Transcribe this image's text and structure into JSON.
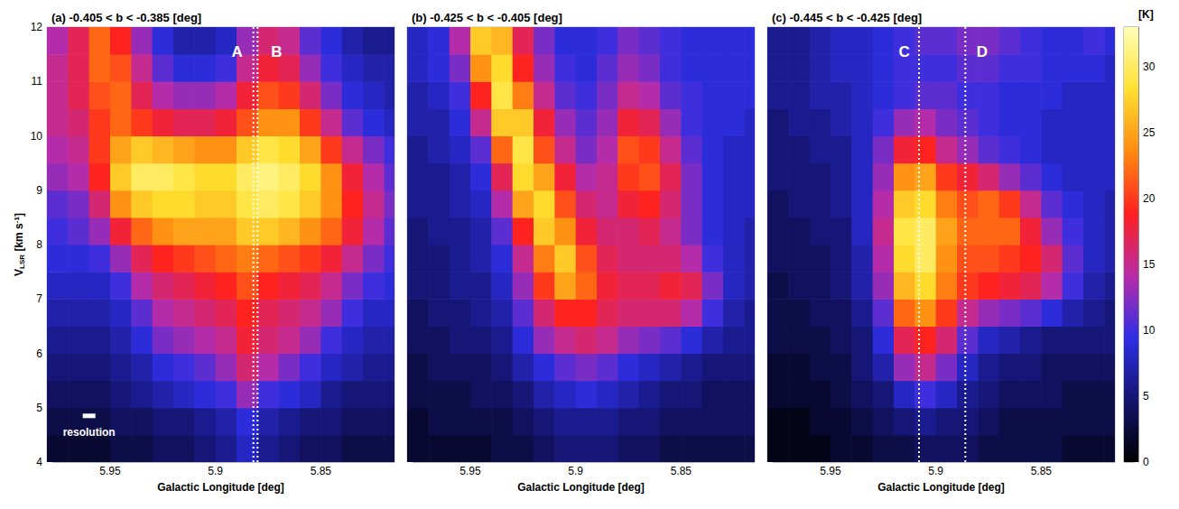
{
  "chart_data": {
    "type": "heatmap",
    "x_label": "Galactic Longitude [deg]",
    "y_label": {
      "main": "V",
      "sub": "LSR",
      "unit": " [km s",
      "sup": "-1",
      "end": "]"
    },
    "xlim": [
      5.98,
      5.815
    ],
    "xticks": [
      5.95,
      5.9,
      5.85
    ],
    "ylim": [
      4,
      12
    ],
    "yticks": [
      4,
      5,
      6,
      7,
      8,
      9,
      10,
      11,
      12
    ],
    "colorbar": {
      "label": "[K]",
      "range": [
        0,
        33
      ],
      "ticks": [
        0,
        5,
        10,
        15,
        20,
        25,
        30
      ],
      "colors": [
        "#000000",
        "#141470",
        "#2e2ee6",
        "#b82ca8",
        "#ff2020",
        "#ff8a10",
        "#ffe030",
        "#ffffb8"
      ]
    },
    "cell_size": {
      "l": 0.01,
      "v": 0.5
    },
    "l": [
      5.975,
      5.965,
      5.955,
      5.945,
      5.935,
      5.925,
      5.915,
      5.905,
      5.895,
      5.885,
      5.875,
      5.865,
      5.855,
      5.845,
      5.835,
      5.825,
      5.815
    ],
    "v": [
      4.25,
      4.75,
      5.25,
      5.75,
      6.25,
      6.75,
      7.25,
      7.75,
      8.25,
      8.75,
      9.25,
      9.75,
      10.25,
      10.75,
      11.25,
      11.75
    ],
    "panels": [
      {
        "title": "(a) -0.405 < b < -0.385 [deg]",
        "lines": [
          5.882,
          5.88
        ],
        "labels": [
          {
            "text": "A",
            "l": 5.8897,
            "v": 11.55
          },
          {
            "text": "B",
            "l": 5.871,
            "v": 11.55
          }
        ],
        "resolution": {
          "label": "resolution",
          "l": 5.96,
          "v": 4.85,
          "width": 0.006
        },
        "intensity": [
          [
            2,
            2,
            2,
            3,
            3,
            4,
            4,
            5,
            6,
            8,
            6,
            5,
            4,
            4,
            3,
            3,
            3
          ],
          [
            3,
            3,
            3,
            4,
            4,
            5,
            5,
            6,
            7,
            9,
            7,
            6,
            5,
            5,
            4,
            4,
            4
          ],
          [
            4,
            4,
            4,
            5,
            6,
            7,
            8,
            9,
            10,
            13,
            10,
            9,
            8,
            6,
            5,
            5,
            5
          ],
          [
            5,
            5,
            5,
            6,
            7,
            9,
            10,
            11,
            13,
            16,
            14,
            12,
            10,
            8,
            7,
            6,
            6
          ],
          [
            6,
            6,
            6,
            7,
            9,
            12,
            13,
            14,
            15,
            18,
            16,
            15,
            13,
            10,
            8,
            7,
            7
          ],
          [
            7,
            7,
            7,
            8,
            11,
            14,
            15,
            16,
            17,
            19,
            17,
            16,
            15,
            13,
            10,
            8,
            8
          ],
          [
            8,
            8,
            8,
            10,
            14,
            16,
            17,
            18,
            19,
            21,
            19,
            18,
            17,
            15,
            12,
            10,
            9
          ],
          [
            9,
            9,
            10,
            13,
            17,
            19,
            20,
            21,
            22,
            23,
            22,
            21,
            20,
            18,
            15,
            12,
            10
          ],
          [
            10,
            11,
            13,
            18,
            22,
            24,
            25,
            25,
            25,
            27,
            27,
            26,
            24,
            22,
            18,
            14,
            11
          ],
          [
            11,
            12,
            16,
            24,
            27,
            28,
            28,
            27,
            27,
            29,
            30,
            29,
            27,
            24,
            19,
            15,
            12
          ],
          [
            13,
            14,
            19,
            27,
            30,
            30,
            29,
            28,
            28,
            30,
            31,
            30,
            28,
            24,
            18,
            14,
            11
          ],
          [
            14,
            15,
            20,
            25,
            27,
            26,
            25,
            24,
            24,
            27,
            29,
            28,
            25,
            20,
            15,
            12,
            10
          ],
          [
            15,
            16,
            20,
            22,
            20,
            18,
            17,
            17,
            18,
            21,
            24,
            24,
            20,
            15,
            11,
            9,
            8
          ],
          [
            15,
            17,
            21,
            22,
            17,
            14,
            13,
            13,
            14,
            18,
            21,
            20,
            16,
            12,
            9,
            8,
            7
          ],
          [
            15,
            17,
            22,
            21,
            15,
            11,
            9,
            9,
            10,
            15,
            18,
            17,
            13,
            10,
            8,
            7,
            7
          ],
          [
            14,
            17,
            22,
            19,
            13,
            9,
            7,
            7,
            8,
            13,
            16,
            15,
            11,
            9,
            7,
            6,
            6
          ]
        ]
      },
      {
        "title": "(b) -0.425 < b < -0.405 [deg]",
        "intensity": [
          [
            2,
            2,
            2,
            2,
            3,
            3,
            4,
            5,
            5,
            5,
            4,
            4,
            3,
            3,
            3,
            3,
            3
          ],
          [
            2,
            3,
            3,
            3,
            3,
            4,
            5,
            6,
            6,
            6,
            5,
            5,
            4,
            4,
            4,
            4,
            4
          ],
          [
            3,
            3,
            3,
            4,
            4,
            5,
            7,
            8,
            9,
            8,
            7,
            6,
            5,
            5,
            4,
            4,
            4
          ],
          [
            3,
            4,
            4,
            4,
            5,
            7,
            9,
            11,
            12,
            11,
            9,
            8,
            7,
            6,
            5,
            5,
            5
          ],
          [
            4,
            4,
            5,
            5,
            6,
            9,
            13,
            15,
            16,
            15,
            13,
            12,
            11,
            9,
            7,
            6,
            6
          ],
          [
            4,
            5,
            5,
            6,
            7,
            11,
            16,
            19,
            19,
            17,
            16,
            16,
            16,
            14,
            10,
            7,
            6
          ],
          [
            5,
            5,
            6,
            6,
            8,
            13,
            20,
            25,
            22,
            18,
            17,
            17,
            18,
            17,
            12,
            8,
            7
          ],
          [
            5,
            5,
            6,
            7,
            9,
            15,
            23,
            27,
            21,
            17,
            16,
            16,
            16,
            14,
            10,
            8,
            7
          ],
          [
            5,
            6,
            6,
            7,
            11,
            19,
            27,
            24,
            18,
            16,
            16,
            17,
            15,
            12,
            9,
            8,
            7
          ],
          [
            6,
            6,
            7,
            8,
            14,
            25,
            28,
            21,
            16,
            15,
            18,
            19,
            16,
            12,
            9,
            8,
            8
          ],
          [
            6,
            6,
            7,
            9,
            17,
            28,
            25,
            18,
            14,
            15,
            20,
            21,
            17,
            12,
            9,
            8,
            8
          ],
          [
            6,
            7,
            8,
            11,
            22,
            29,
            21,
            15,
            12,
            14,
            21,
            20,
            15,
            11,
            9,
            8,
            8
          ],
          [
            7,
            7,
            9,
            15,
            27,
            27,
            18,
            13,
            11,
            13,
            18,
            17,
            13,
            10,
            9,
            9,
            8
          ],
          [
            7,
            8,
            10,
            19,
            29,
            23,
            15,
            11,
            10,
            12,
            15,
            14,
            11,
            10,
            9,
            9,
            9
          ],
          [
            8,
            9,
            12,
            24,
            28,
            19,
            13,
            10,
            9,
            11,
            13,
            12,
            10,
            9,
            9,
            9,
            9
          ],
          [
            8,
            9,
            14,
            27,
            26,
            17,
            12,
            9,
            9,
            10,
            12,
            11,
            10,
            9,
            9,
            9,
            9
          ]
        ]
      },
      {
        "title": "(c) -0.445 < b < -0.425 [deg]",
        "lines": [
          5.908,
          5.886
        ],
        "labels": [
          {
            "text": "C",
            "l": 5.915,
            "v": 11.55
          },
          {
            "text": "D",
            "l": 5.878,
            "v": 11.55
          }
        ],
        "intensity": [
          [
            1,
            1,
            1,
            2,
            2,
            3,
            3,
            4,
            4,
            4,
            3,
            3,
            3,
            3,
            2,
            2,
            2
          ],
          [
            1,
            1,
            2,
            2,
            3,
            4,
            5,
            6,
            5,
            5,
            4,
            3,
            3,
            3,
            3,
            3,
            3
          ],
          [
            2,
            2,
            2,
            3,
            4,
            5,
            8,
            10,
            8,
            6,
            5,
            4,
            4,
            4,
            3,
            3,
            3
          ],
          [
            2,
            2,
            3,
            3,
            5,
            7,
            13,
            15,
            12,
            8,
            6,
            5,
            5,
            4,
            4,
            4,
            4
          ],
          [
            3,
            3,
            3,
            4,
            5,
            9,
            17,
            19,
            16,
            11,
            8,
            7,
            6,
            5,
            5,
            5,
            5
          ],
          [
            3,
            3,
            4,
            4,
            6,
            11,
            22,
            24,
            20,
            15,
            13,
            12,
            11,
            9,
            7,
            6,
            5
          ],
          [
            3,
            4,
            4,
            5,
            7,
            13,
            26,
            28,
            23,
            20,
            19,
            18,
            17,
            14,
            10,
            7,
            6
          ],
          [
            4,
            4,
            4,
            5,
            7,
            14,
            28,
            30,
            24,
            21,
            21,
            20,
            19,
            16,
            11,
            8,
            7
          ],
          [
            4,
            4,
            5,
            5,
            8,
            15,
            29,
            30,
            25,
            22,
            22,
            22,
            18,
            13,
            10,
            8,
            7
          ],
          [
            4,
            5,
            5,
            6,
            8,
            14,
            27,
            28,
            23,
            21,
            22,
            20,
            15,
            11,
            9,
            8,
            7
          ],
          [
            5,
            5,
            5,
            6,
            8,
            13,
            24,
            25,
            20,
            18,
            16,
            13,
            11,
            9,
            8,
            8,
            8
          ],
          [
            5,
            5,
            6,
            6,
            8,
            12,
            18,
            19,
            15,
            13,
            11,
            10,
            9,
            8,
            8,
            8,
            8
          ],
          [
            5,
            6,
            6,
            7,
            8,
            10,
            13,
            14,
            12,
            11,
            10,
            9,
            9,
            8,
            8,
            8,
            8
          ],
          [
            6,
            6,
            7,
            7,
            8,
            9,
            10,
            11,
            11,
            10,
            10,
            9,
            9,
            9,
            8,
            8,
            8
          ],
          [
            6,
            6,
            7,
            8,
            8,
            9,
            10,
            10,
            10,
            11,
            11,
            10,
            10,
            9,
            9,
            9,
            8
          ],
          [
            6,
            6,
            7,
            8,
            8,
            9,
            10,
            11,
            11,
            12,
            12,
            11,
            10,
            9,
            9,
            10,
            9
          ]
        ]
      }
    ]
  }
}
